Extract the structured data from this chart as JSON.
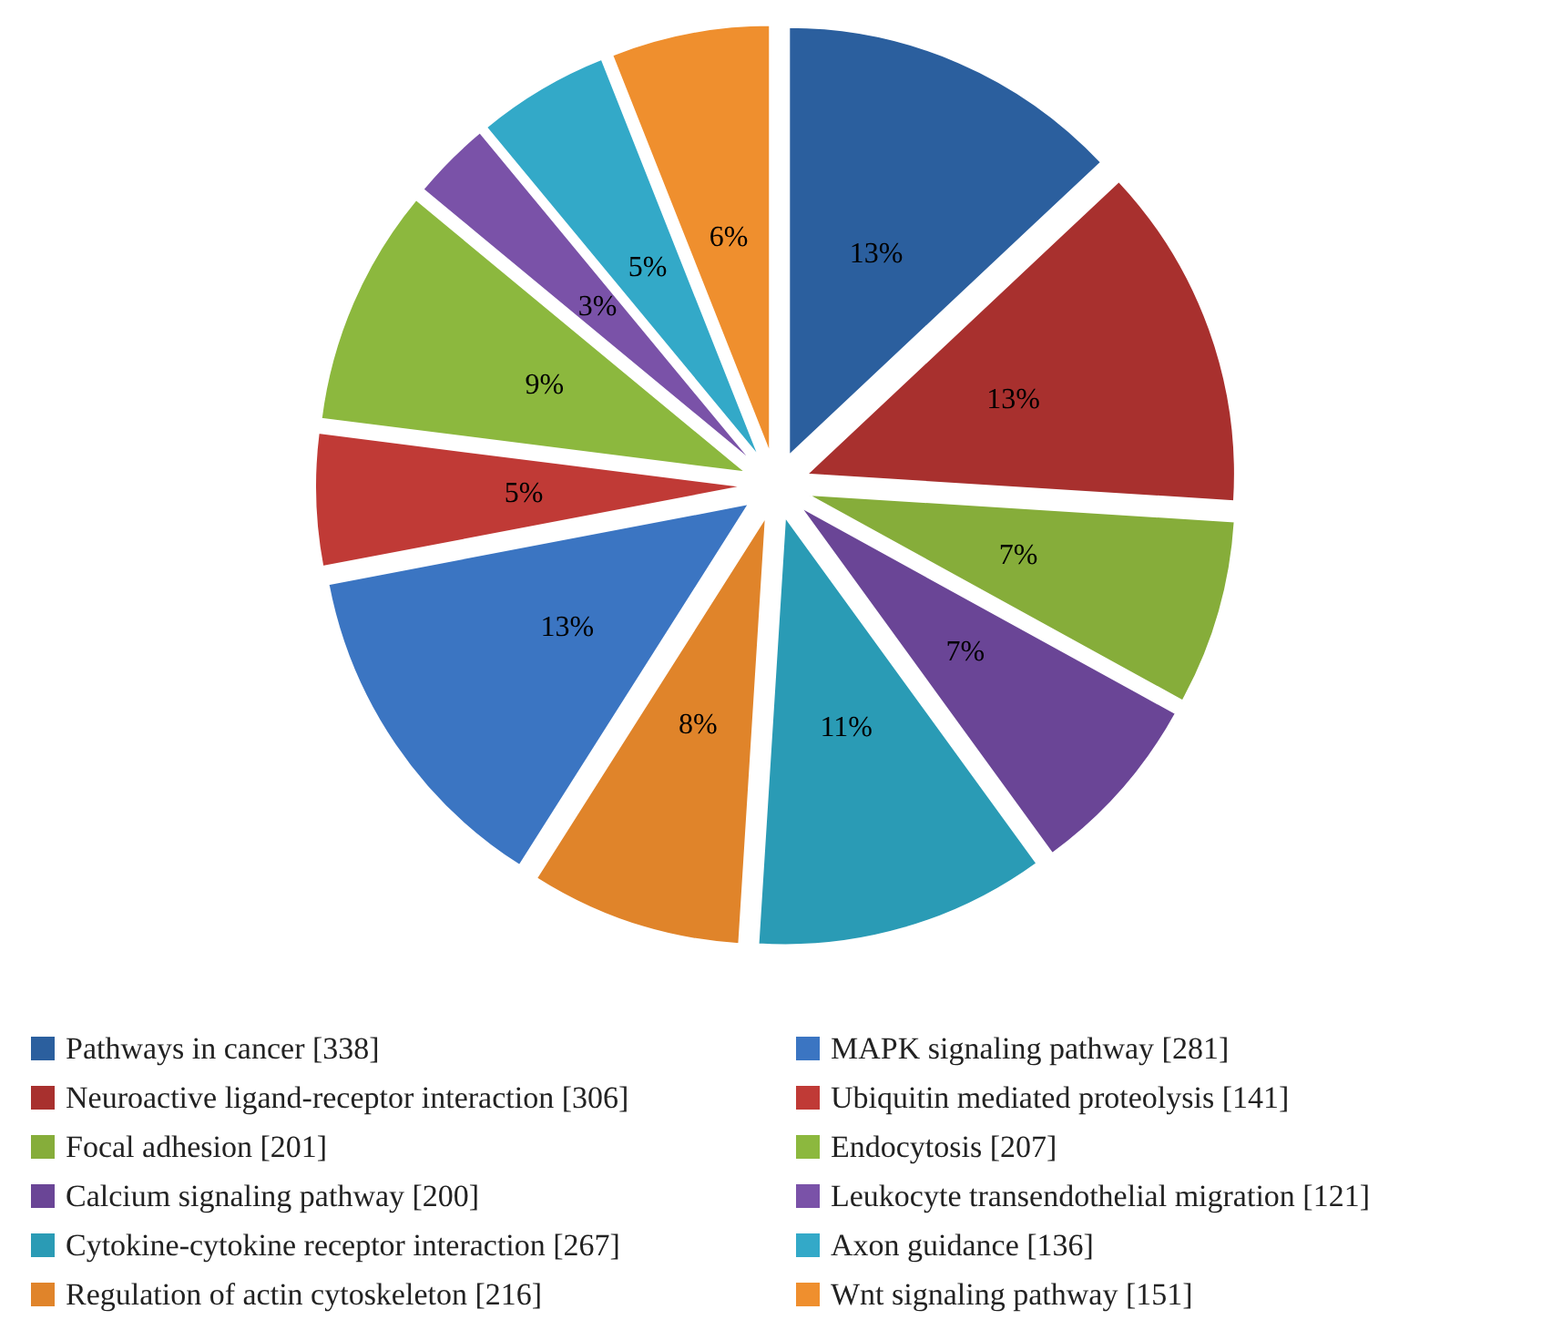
{
  "chart_data": {
    "type": "pie",
    "legend": "bottom",
    "categories": [
      "Pathways in cancer [338]",
      "Neuroactive ligand-receptor interaction [306]",
      "Focal adhesion [201]",
      "Calcium signaling pathway [200]",
      "Cytokine-cytokine receptor interaction [267]",
      "Regulation of actin cytoskeleton [216]",
      "MAPK signaling pathway [281]",
      "Ubiquitin mediated proteolysis [141]",
      "Endocytosis [207]",
      "Leukocyte transendothelial migration [121]",
      "Axon guidance [136]",
      "Wnt signaling pathway [151]"
    ],
    "values": [
      13,
      13,
      7,
      7,
      11,
      8,
      13,
      5,
      9,
      3,
      5,
      6
    ],
    "value_labels": [
      "13%",
      "13%",
      "7%",
      "7%",
      "11%",
      "8%",
      "13%",
      "5%",
      "9%",
      "3%",
      "5%",
      "6%"
    ],
    "colors": [
      "#2b5f9e",
      "#a8302e",
      "#86ad3a",
      "#6a4596",
      "#2a9bb5",
      "#e0842a",
      "#3b75c2",
      "#c03a36",
      "#8cb83e",
      "#7a52a8",
      "#33a9c8",
      "#ef8f2e"
    ]
  }
}
